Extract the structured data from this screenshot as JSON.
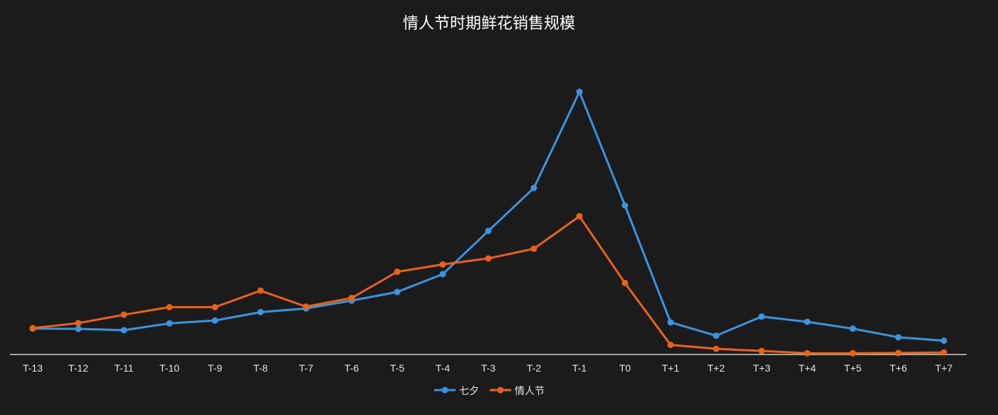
{
  "chart_data": {
    "type": "line",
    "title": "情人节时期鲜花销售规模",
    "xlabel": "",
    "ylabel": "",
    "categories": [
      "T-13",
      "T-12",
      "T-11",
      "T-10",
      "T-9",
      "T-8",
      "T-7",
      "T-6",
      "T-5",
      "T-4",
      "T-3",
      "T-2",
      "T-1",
      "T0",
      "T+1",
      "T+2",
      "T+3",
      "T+4",
      "T+5",
      "T+6",
      "T+7"
    ],
    "ylim": [
      0,
      100
    ],
    "grid": false,
    "legend_position": "bottom-center",
    "series": [
      {
        "name": "七夕",
        "color": "#3a94de",
        "values": [
          9.6,
          9.5,
          9.0,
          11.6,
          12.7,
          15.9,
          17.3,
          20.3,
          23.6,
          30.4,
          46.9,
          63.3,
          100.0,
          56.6,
          12.0,
          6.9,
          14.2,
          12.2,
          9.6,
          6.3,
          5.0
        ]
      },
      {
        "name": "情人节",
        "color": "#e8621c",
        "values": [
          9.8,
          11.7,
          14.9,
          17.8,
          17.8,
          24.1,
          18.0,
          21.3,
          31.3,
          34.1,
          36.4,
          40.1,
          52.5,
          27.0,
          3.4,
          1.9,
          1.1,
          0.2,
          0.2,
          0.3,
          0.5
        ]
      }
    ]
  }
}
